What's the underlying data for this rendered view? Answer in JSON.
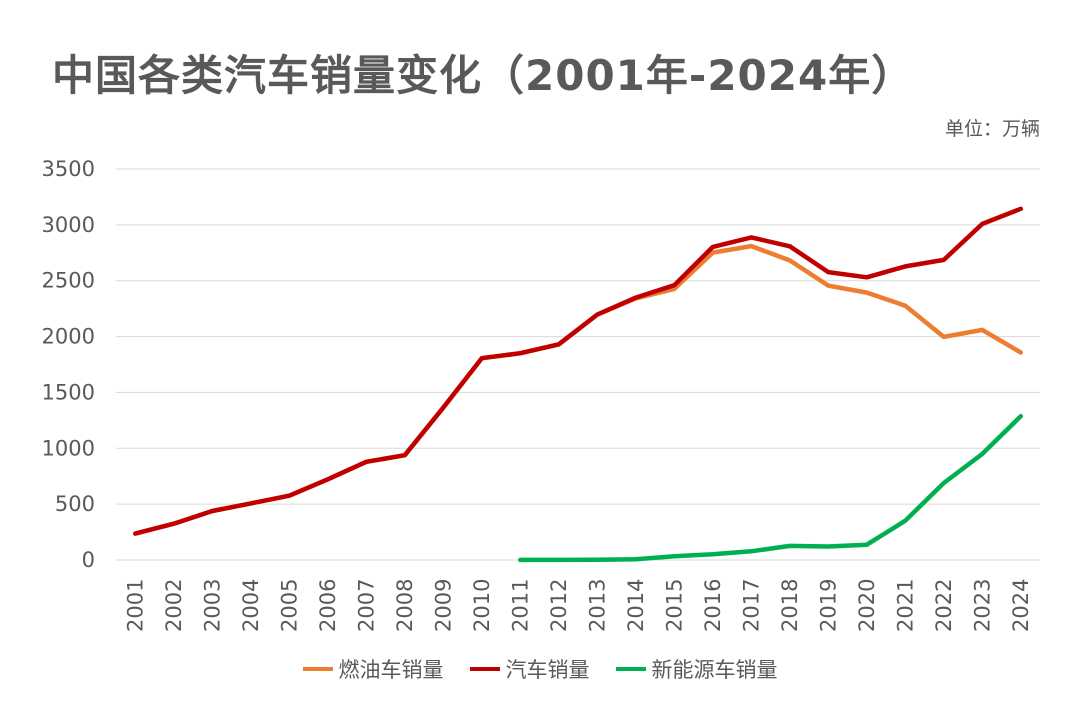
{
  "chart_data": {
    "type": "line",
    "title": "中国各类汽车销量变化（2001年-2024年）",
    "unit_label": "单位：万辆",
    "categories": [
      "2001",
      "2002",
      "2003",
      "2004",
      "2005",
      "2006",
      "2007",
      "2008",
      "2009",
      "2010",
      "2011",
      "2012",
      "2013",
      "2014",
      "2015",
      "2016",
      "2017",
      "2018",
      "2019",
      "2020",
      "2021",
      "2022",
      "2023",
      "2024"
    ],
    "ylim": [
      0,
      3500
    ],
    "yticks": [
      "0",
      "500",
      "1000",
      "1500",
      "2000",
      "2500",
      "3000",
      "3500"
    ],
    "grid": true,
    "legend_position": "bottom",
    "series": [
      {
        "name": "燃油车销量",
        "color": "#ED7D31",
        "values": [
          236,
          325,
          439,
          507,
          576,
          722,
          879,
          938,
          1364,
          1806,
          1850,
          1930,
          2196,
          2342,
          2427,
          2752,
          2810,
          2682,
          2456,
          2394,
          2276,
          1997,
          2060,
          1857
        ]
      },
      {
        "name": "汽车销量",
        "color": "#C00000",
        "values": [
          236,
          325,
          439,
          507,
          576,
          722,
          879,
          938,
          1364,
          1806,
          1851,
          1931,
          2198,
          2349,
          2460,
          2803,
          2888,
          2808,
          2577,
          2531,
          2628,
          2686,
          3009,
          3144
        ]
      },
      {
        "name": "新能源车销量",
        "color": "#00B050",
        "values": [
          null,
          null,
          null,
          null,
          null,
          null,
          null,
          null,
          null,
          null,
          1,
          1,
          2,
          7,
          33,
          51,
          78,
          126,
          121,
          137,
          352,
          689,
          950,
          1287
        ]
      }
    ]
  }
}
